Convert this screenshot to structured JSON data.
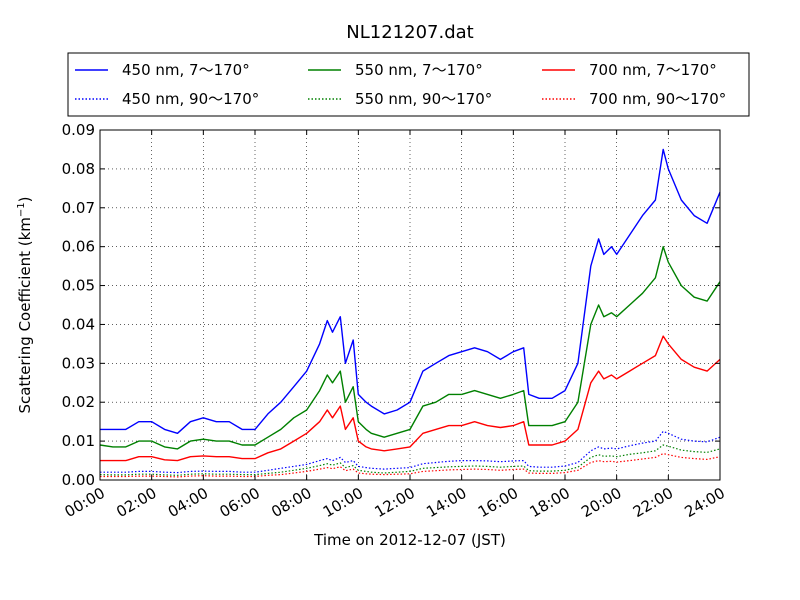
{
  "chart_data": {
    "type": "line",
    "title": "NL121207.dat",
    "xlabel": "Time on 2012-12-07 (JST)",
    "ylabel_main": "Scattering Coefficient (km",
    "ylabel_sup": "−1",
    "ylabel_end": ")",
    "x_unit": "hours",
    "xlim": [
      0,
      24
    ],
    "ylim": [
      0,
      0.09
    ],
    "xticks": [
      0,
      2,
      4,
      6,
      8,
      10,
      12,
      14,
      16,
      18,
      20,
      22,
      24
    ],
    "xtick_labels": [
      "00:00",
      "02:00",
      "04:00",
      "06:00",
      "08:00",
      "10:00",
      "12:00",
      "14:00",
      "16:00",
      "18:00",
      "20:00",
      "22:00",
      "24:00"
    ],
    "yticks": [
      0,
      0.01,
      0.02,
      0.03,
      0.04,
      0.05,
      0.06,
      0.07,
      0.08,
      0.09
    ],
    "ytick_labels": [
      "0.00",
      "0.01",
      "0.02",
      "0.03",
      "0.04",
      "0.05",
      "0.06",
      "0.07",
      "0.08",
      "0.09"
    ],
    "grid": true,
    "legend_position": "top",
    "x": [
      0,
      0.5,
      1,
      1.5,
      2,
      2.5,
      3,
      3.5,
      4,
      4.5,
      5,
      5.5,
      6,
      6.5,
      7,
      7.5,
      8,
      8.5,
      8.8,
      9,
      9.3,
      9.5,
      9.8,
      10,
      10.3,
      10.5,
      11,
      11.5,
      12,
      12.5,
      13,
      13.5,
      14,
      14.5,
      15,
      15.5,
      16,
      16.4,
      16.6,
      17,
      17.5,
      18,
      18.5,
      19,
      19.3,
      19.5,
      19.8,
      20,
      20.5,
      21,
      21.5,
      21.8,
      22,
      22.5,
      23,
      23.5,
      24
    ],
    "series": [
      {
        "name": "450 nm, 7～170°",
        "color": "#0000ff",
        "dash": "solid",
        "values": [
          0.013,
          0.013,
          0.013,
          0.015,
          0.015,
          0.013,
          0.012,
          0.015,
          0.016,
          0.015,
          0.015,
          0.013,
          0.013,
          0.017,
          0.02,
          0.024,
          0.028,
          0.035,
          0.041,
          0.038,
          0.042,
          0.03,
          0.036,
          0.022,
          0.02,
          0.019,
          0.017,
          0.018,
          0.02,
          0.028,
          0.03,
          0.032,
          0.033,
          0.034,
          0.033,
          0.031,
          0.033,
          0.034,
          0.022,
          0.021,
          0.021,
          0.023,
          0.03,
          0.055,
          0.062,
          0.058,
          0.06,
          0.058,
          0.063,
          0.068,
          0.072,
          0.085,
          0.08,
          0.072,
          0.068,
          0.066,
          0.074
        ]
      },
      {
        "name": "450 nm, 90～170°",
        "color": "#0000ff",
        "dash": "dotted",
        "values": [
          0.002,
          0.002,
          0.002,
          0.0022,
          0.0022,
          0.002,
          0.0019,
          0.0022,
          0.0023,
          0.0022,
          0.0022,
          0.002,
          0.002,
          0.0025,
          0.003,
          0.0035,
          0.004,
          0.005,
          0.0055,
          0.005,
          0.0058,
          0.0045,
          0.005,
          0.0035,
          0.0032,
          0.003,
          0.0028,
          0.003,
          0.0032,
          0.0042,
          0.0045,
          0.0048,
          0.005,
          0.005,
          0.0049,
          0.0047,
          0.0049,
          0.005,
          0.0035,
          0.0033,
          0.0033,
          0.0036,
          0.0045,
          0.0075,
          0.0085,
          0.008,
          0.0082,
          0.008,
          0.0088,
          0.0095,
          0.01,
          0.0125,
          0.012,
          0.0105,
          0.01,
          0.0098,
          0.011
        ]
      },
      {
        "name": "550 nm, 7～170°",
        "color": "#008000",
        "dash": "solid",
        "values": [
          0.009,
          0.0085,
          0.0085,
          0.01,
          0.01,
          0.0085,
          0.008,
          0.01,
          0.0105,
          0.01,
          0.01,
          0.009,
          0.009,
          0.011,
          0.013,
          0.016,
          0.018,
          0.023,
          0.027,
          0.025,
          0.028,
          0.02,
          0.024,
          0.015,
          0.013,
          0.012,
          0.011,
          0.012,
          0.013,
          0.019,
          0.02,
          0.022,
          0.022,
          0.023,
          0.022,
          0.021,
          0.022,
          0.023,
          0.014,
          0.014,
          0.014,
          0.015,
          0.02,
          0.04,
          0.045,
          0.042,
          0.043,
          0.042,
          0.045,
          0.048,
          0.052,
          0.06,
          0.056,
          0.05,
          0.047,
          0.046,
          0.051
        ]
      },
      {
        "name": "550 nm, 90～170°",
        "color": "#008000",
        "dash": "dotted",
        "values": [
          0.0014,
          0.0013,
          0.0013,
          0.0015,
          0.0015,
          0.0013,
          0.0012,
          0.0015,
          0.0016,
          0.0015,
          0.0015,
          0.0014,
          0.0014,
          0.0017,
          0.002,
          0.0025,
          0.003,
          0.0037,
          0.0042,
          0.0038,
          0.0044,
          0.0032,
          0.0037,
          0.0025,
          0.0022,
          0.002,
          0.0018,
          0.002,
          0.0022,
          0.003,
          0.0032,
          0.0034,
          0.0035,
          0.0036,
          0.0035,
          0.0033,
          0.0035,
          0.0036,
          0.0024,
          0.0023,
          0.0023,
          0.0025,
          0.0033,
          0.0058,
          0.0065,
          0.0061,
          0.0062,
          0.006,
          0.0066,
          0.007,
          0.0075,
          0.009,
          0.0087,
          0.0077,
          0.0073,
          0.0071,
          0.008
        ]
      },
      {
        "name": "700 nm, 7～170°",
        "color": "#ff0000",
        "dash": "solid",
        "values": [
          0.005,
          0.005,
          0.005,
          0.006,
          0.006,
          0.0052,
          0.005,
          0.006,
          0.0062,
          0.006,
          0.006,
          0.0055,
          0.0055,
          0.007,
          0.008,
          0.01,
          0.012,
          0.015,
          0.018,
          0.016,
          0.019,
          0.013,
          0.016,
          0.01,
          0.0085,
          0.008,
          0.0075,
          0.008,
          0.0085,
          0.012,
          0.013,
          0.014,
          0.014,
          0.015,
          0.014,
          0.0135,
          0.014,
          0.015,
          0.009,
          0.009,
          0.009,
          0.01,
          0.013,
          0.025,
          0.028,
          0.026,
          0.027,
          0.026,
          0.028,
          0.03,
          0.032,
          0.037,
          0.035,
          0.031,
          0.029,
          0.028,
          0.031
        ]
      },
      {
        "name": "700 nm, 90～170°",
        "color": "#ff0000",
        "dash": "dotted",
        "values": [
          0.0009,
          0.0009,
          0.0009,
          0.001,
          0.001,
          0.0009,
          0.0008,
          0.001,
          0.0011,
          0.001,
          0.001,
          0.0009,
          0.0009,
          0.0012,
          0.0014,
          0.0018,
          0.0022,
          0.0028,
          0.0032,
          0.0029,
          0.0034,
          0.0024,
          0.0028,
          0.0018,
          0.0016,
          0.0015,
          0.0014,
          0.0015,
          0.0016,
          0.0022,
          0.0024,
          0.0026,
          0.0027,
          0.0028,
          0.0027,
          0.0025,
          0.0027,
          0.0028,
          0.0018,
          0.0017,
          0.0017,
          0.0019,
          0.0025,
          0.0045,
          0.005,
          0.0047,
          0.0048,
          0.0046,
          0.005,
          0.0054,
          0.0058,
          0.0068,
          0.0065,
          0.0058,
          0.0055,
          0.0053,
          0.006
        ]
      }
    ]
  }
}
